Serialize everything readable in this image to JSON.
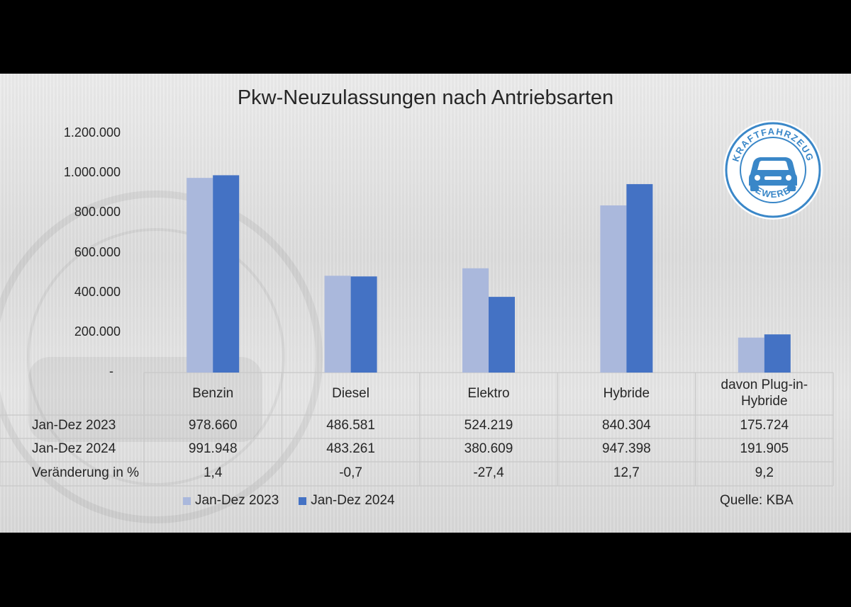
{
  "chart_data": {
    "type": "bar",
    "title": "Pkw-Neuzulassungen nach Antriebsarten",
    "categories": [
      "Benzin",
      "Diesel",
      "Elektro",
      "Hybride",
      "davon Plug-in-Hybride"
    ],
    "category_lines": [
      [
        "Benzin"
      ],
      [
        "Diesel"
      ],
      [
        "Elektro"
      ],
      [
        "Hybride"
      ],
      [
        "davon Plug-in-",
        "Hybride"
      ]
    ],
    "series": [
      {
        "name": "Jan-Dez 2023",
        "values": [
          978660,
          486581,
          524219,
          840304,
          175724
        ],
        "color": "#aab8dc"
      },
      {
        "name": "Jan-Dez 2024",
        "values": [
          991948,
          483261,
          380609,
          947398,
          191905
        ],
        "color": "#4472c4"
      }
    ],
    "ylim": [
      0,
      1200000
    ],
    "yticks": [
      "-",
      "200.000",
      "400.000",
      "600.000",
      "800.000",
      "1.000.000",
      "1.200.000"
    ],
    "legend_position": "bottom-left",
    "grid": false
  },
  "table": {
    "rows": [
      {
        "label": "Jan-Dez 2023",
        "cells": [
          "978.660",
          "486.581",
          "524.219",
          "840.304",
          "175.724"
        ]
      },
      {
        "label": "Jan-Dez 2024",
        "cells": [
          "991.948",
          "483.261",
          "380.609",
          "947.398",
          "191.905"
        ]
      },
      {
        "label": "Veränderung in %",
        "cells": [
          "1,4",
          "-0,7",
          "-27,4",
          "12,7",
          "9,2"
        ]
      }
    ]
  },
  "legend": {
    "item1": "Jan-Dez 2023",
    "item2": "Jan-Dez 2024"
  },
  "source": "Quelle: KBA",
  "logo": {
    "top_text": "KRAFTFAHRZEUG",
    "bottom_text": "GEWERBE",
    "color": "#3a87c8"
  }
}
